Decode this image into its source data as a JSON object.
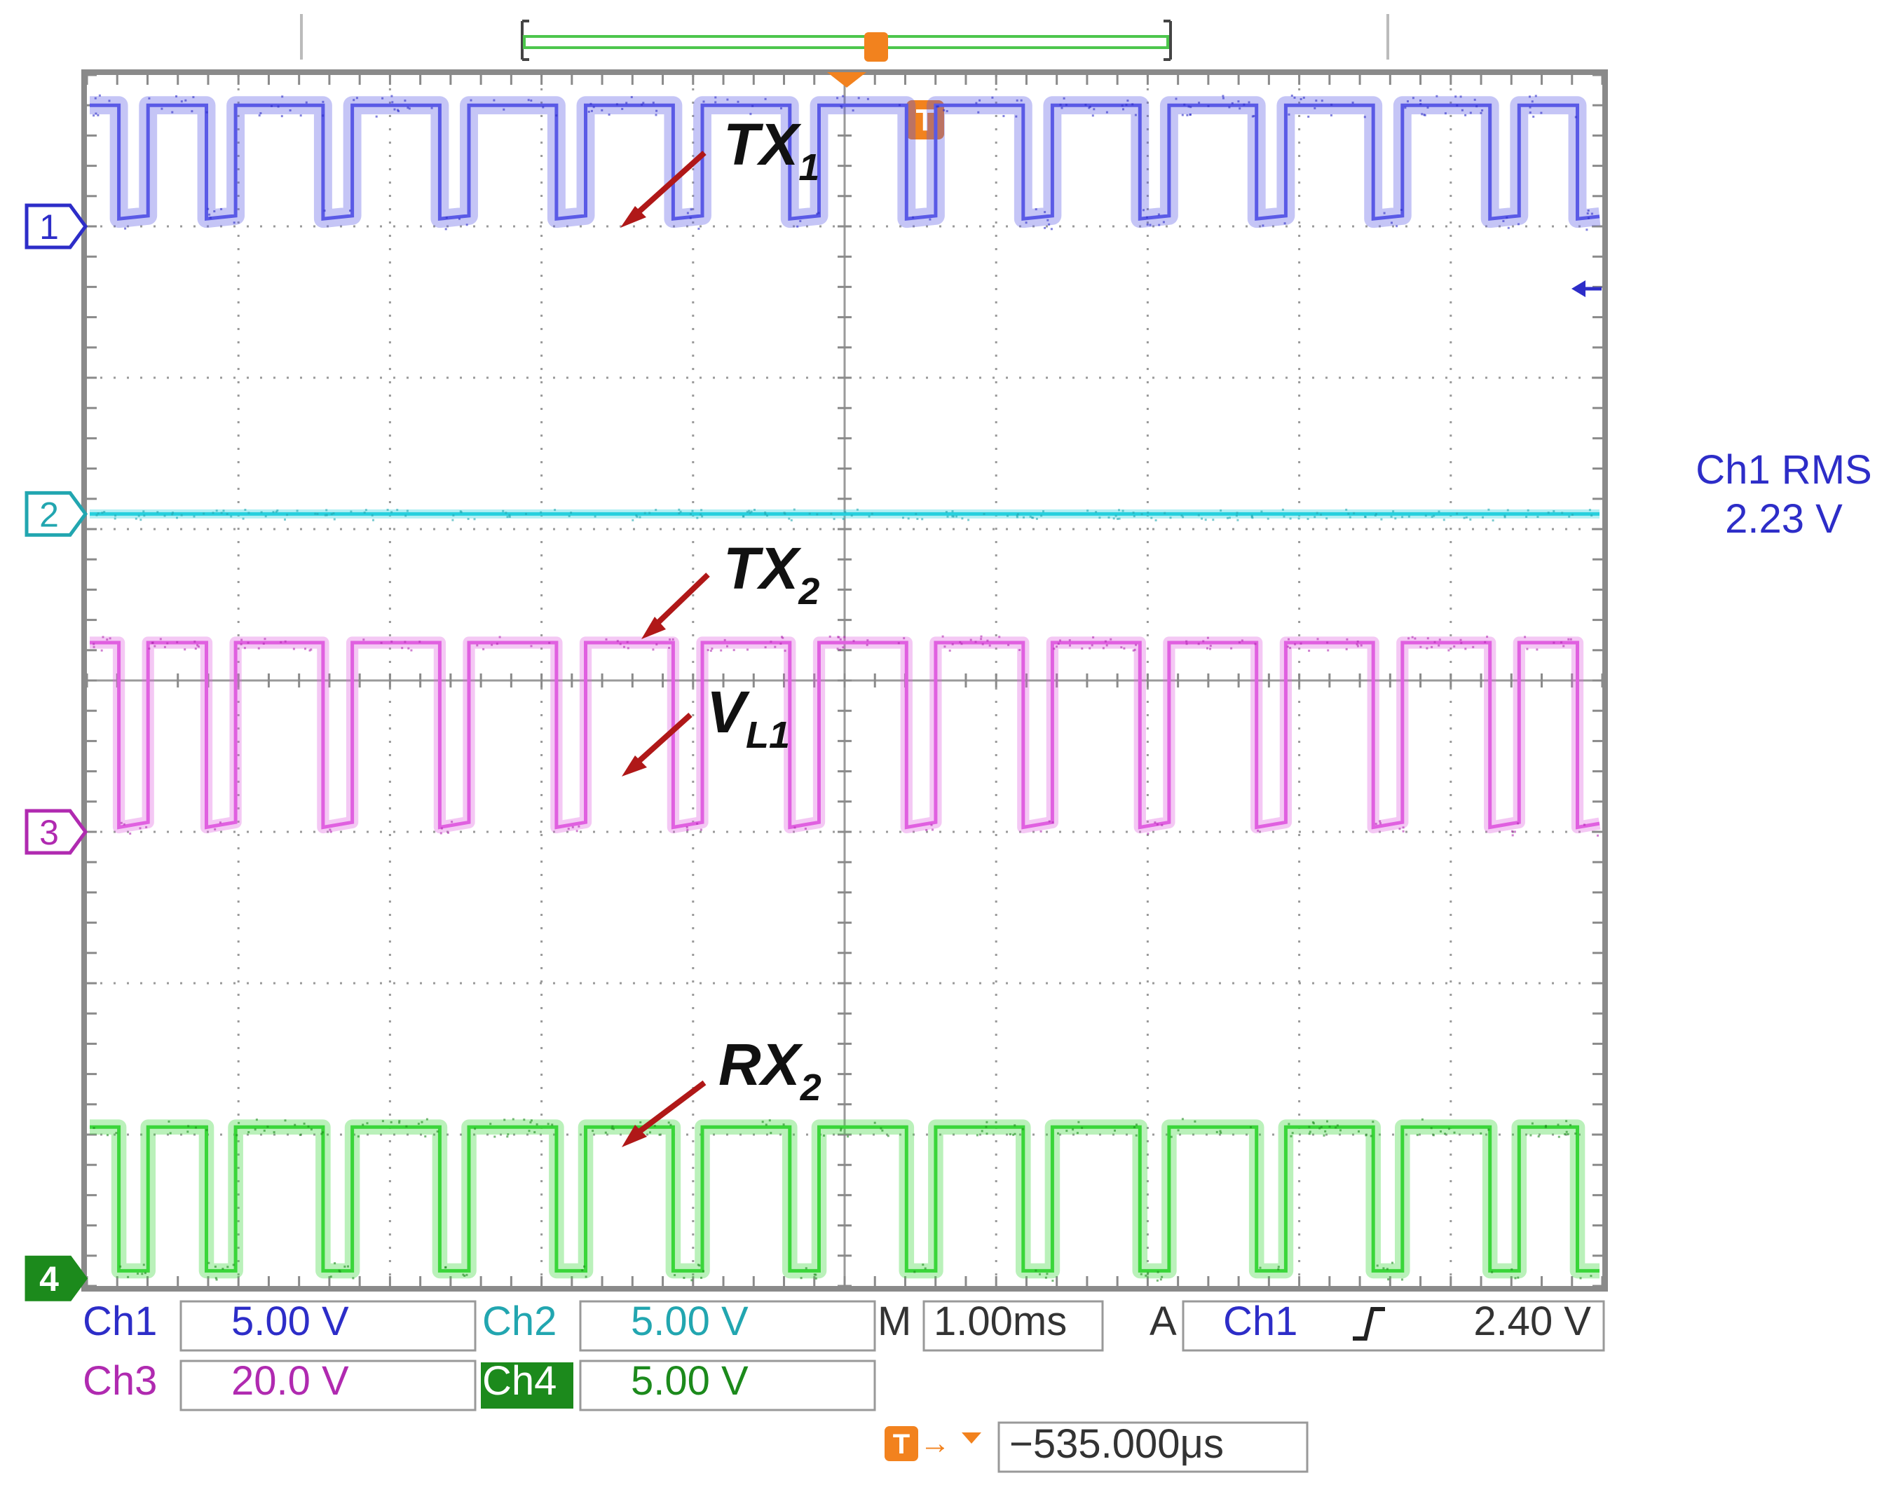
{
  "chart_data": {
    "type": "line",
    "title": "",
    "xlabel": "",
    "ylabel": "",
    "divisions": {
      "x": 10,
      "y": 8
    },
    "grid": true,
    "timebase": "M 1.00ms",
    "timebase_label": "M",
    "timebase_value": "1.00ms",
    "trigger_label": "A",
    "trigger_source": "Ch1",
    "trigger_level": "2.40 V",
    "trigger_position_label": "T",
    "trigger_offset": "−535.000μs",
    "measurement": {
      "label": "Ch1 RMS",
      "value": "2.23 V"
    },
    "bit_pattern": [
      1,
      0,
      1,
      1,
      0,
      1,
      1,
      1,
      0,
      1,
      1,
      1,
      0,
      1,
      1,
      1,
      0,
      1,
      1,
      1,
      0,
      1,
      1,
      1,
      0,
      1,
      1,
      1,
      0,
      1,
      1,
      1,
      0,
      1,
      1,
      1,
      0,
      1,
      1,
      1,
      0,
      1,
      1,
      1,
      0,
      1,
      1,
      1,
      0,
      1,
      1,
      0
    ],
    "bit_period_ms": 0.1925,
    "series": [
      {
        "channel": "1",
        "name": "TX",
        "subscript": "1",
        "scale_label": "Ch1",
        "scale": "5.00 V",
        "color": "#2d2dc8",
        "trace_color": "#5a5ae6",
        "ground_div": 3.0,
        "high_div": 3.8,
        "low_div": 3.05,
        "slope_div": 0.06,
        "noise_div": 0.06
      },
      {
        "channel": "2",
        "name": "TX",
        "subscript": "2",
        "scale_label": "Ch2",
        "scale": "5.00 V",
        "color": "#22a6b0",
        "trace_color": "#27d0de",
        "ground_div": 1.1,
        "high_div": 1.1,
        "low_div": 1.1,
        "slope_div": 0.0,
        "noise_div": 0.03
      },
      {
        "channel": "3",
        "name": "V",
        "subscript": "L1",
        "scale_label": "Ch3",
        "scale": "20.0 V",
        "color": "#b02ab0",
        "trace_color": "#e060e0",
        "ground_div": -1.0,
        "high_div": 0.25,
        "low_div": -0.97,
        "slope_div": 0.1,
        "noise_div": 0.04
      },
      {
        "channel": "4",
        "name": "RX",
        "subscript": "2",
        "scale_label": "Ch4",
        "scale": "5.00 V",
        "color": "#1c8a1c",
        "trace_color": "#3ad63a",
        "ground_div": -3.95,
        "high_div": -2.95,
        "low_div": -3.9,
        "slope_div": 0.0,
        "noise_div": 0.05
      }
    ]
  },
  "annotations": [
    {
      "name": "TX",
      "subscript": "1"
    },
    {
      "name": "TX",
      "subscript": "2"
    },
    {
      "name": "V",
      "subscript": "L1"
    },
    {
      "name": "RX",
      "subscript": "2"
    }
  ]
}
